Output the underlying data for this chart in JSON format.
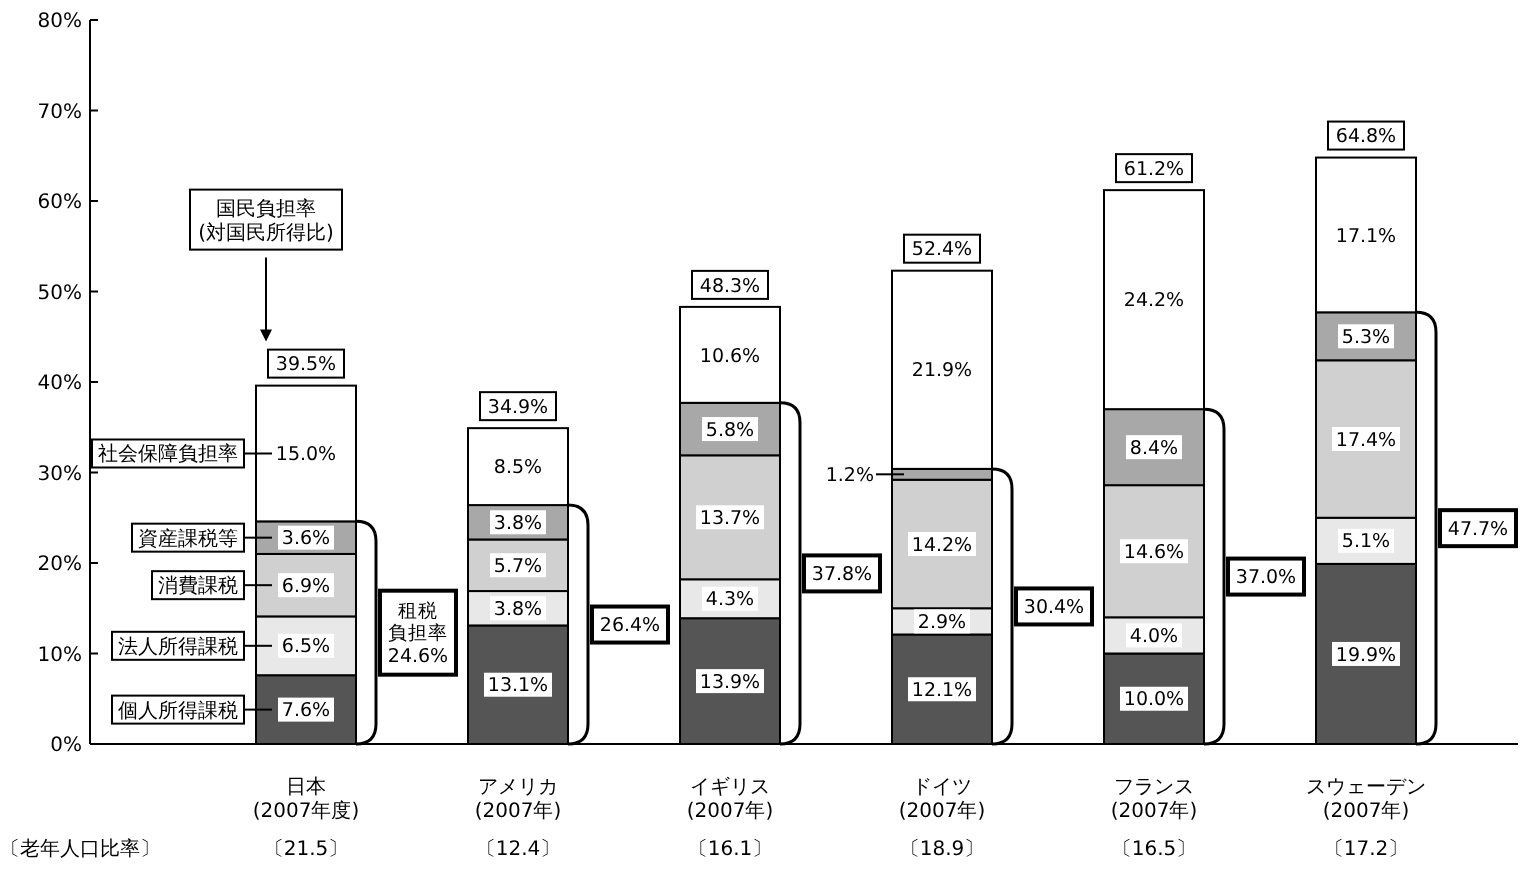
{
  "chart_data": {
    "type": "bar",
    "stacked": true,
    "categories": [
      "日本\n(2007年度)",
      "アメリカ\n(2007年)",
      "イギリス\n(2007年)",
      "ドイツ\n(2007年)",
      "フランス\n(2007年)",
      "スウェーデン\n(2007年)"
    ],
    "ylim": [
      0,
      80
    ],
    "yticks": [
      {
        "value": 0,
        "label": "0%"
      },
      {
        "value": 10,
        "label": "10%"
      },
      {
        "value": 20,
        "label": "20%"
      },
      {
        "value": 30,
        "label": "30%"
      },
      {
        "value": 40,
        "label": "40%"
      },
      {
        "value": 50,
        "label": "50%"
      },
      {
        "value": 60,
        "label": "60%"
      },
      {
        "value": 70,
        "label": "70%"
      },
      {
        "value": 80,
        "label": "80%"
      }
    ],
    "series": [
      {
        "name": "個人所得課税",
        "color": "#555555",
        "values": [
          7.6,
          13.1,
          13.9,
          12.1,
          10.0,
          19.9
        ],
        "value_labels": [
          "7.6%",
          "13.1%",
          "13.9%",
          "12.1%",
          "10.0%",
          "19.9%"
        ]
      },
      {
        "name": "法人所得課税",
        "color": "#e8e8e8",
        "values": [
          6.5,
          3.8,
          4.3,
          2.9,
          4.0,
          5.1
        ],
        "value_labels": [
          "6.5%",
          "3.8%",
          "4.3%",
          "2.9%",
          "4.0%",
          "5.1%"
        ]
      },
      {
        "name": "消費課税",
        "color": "#d0d0d0",
        "values": [
          6.9,
          5.7,
          13.7,
          14.2,
          14.6,
          17.4
        ],
        "value_labels": [
          "6.9%",
          "5.7%",
          "13.7%",
          "14.2%",
          "14.6%",
          "17.4%"
        ]
      },
      {
        "name": "資産課税等",
        "color": "#a8a8a8",
        "values": [
          3.6,
          3.8,
          5.8,
          1.2,
          8.4,
          5.3
        ],
        "value_labels": [
          "3.6%",
          "3.8%",
          "5.8%",
          "1.2%",
          "8.4%",
          "5.3%"
        ]
      },
      {
        "name": "社会保障負担率",
        "color": "#ffffff",
        "values": [
          15.0,
          8.5,
          10.6,
          21.9,
          24.2,
          17.1
        ],
        "value_labels": [
          "15.0%",
          "8.5%",
          "10.6%",
          "21.9%",
          "24.2%",
          "17.1%"
        ]
      }
    ],
    "totals": [
      "39.5%",
      "34.9%",
      "48.3%",
      "52.4%",
      "61.2%",
      "64.8%"
    ],
    "legend": "left",
    "annotations": [
      "国民負担率\n(対国民所得比)",
      "租税負担率24.6%",
      "26.4%",
      "37.8%",
      "30.4%",
      "37.0%",
      "47.7%",
      "〔老年人口比率〕",
      "〔21.5〕",
      "〔12.4〕",
      "〔16.1〕",
      "〔18.9〕",
      "〔16.5〕",
      "〔17.2〕"
    ]
  }
}
